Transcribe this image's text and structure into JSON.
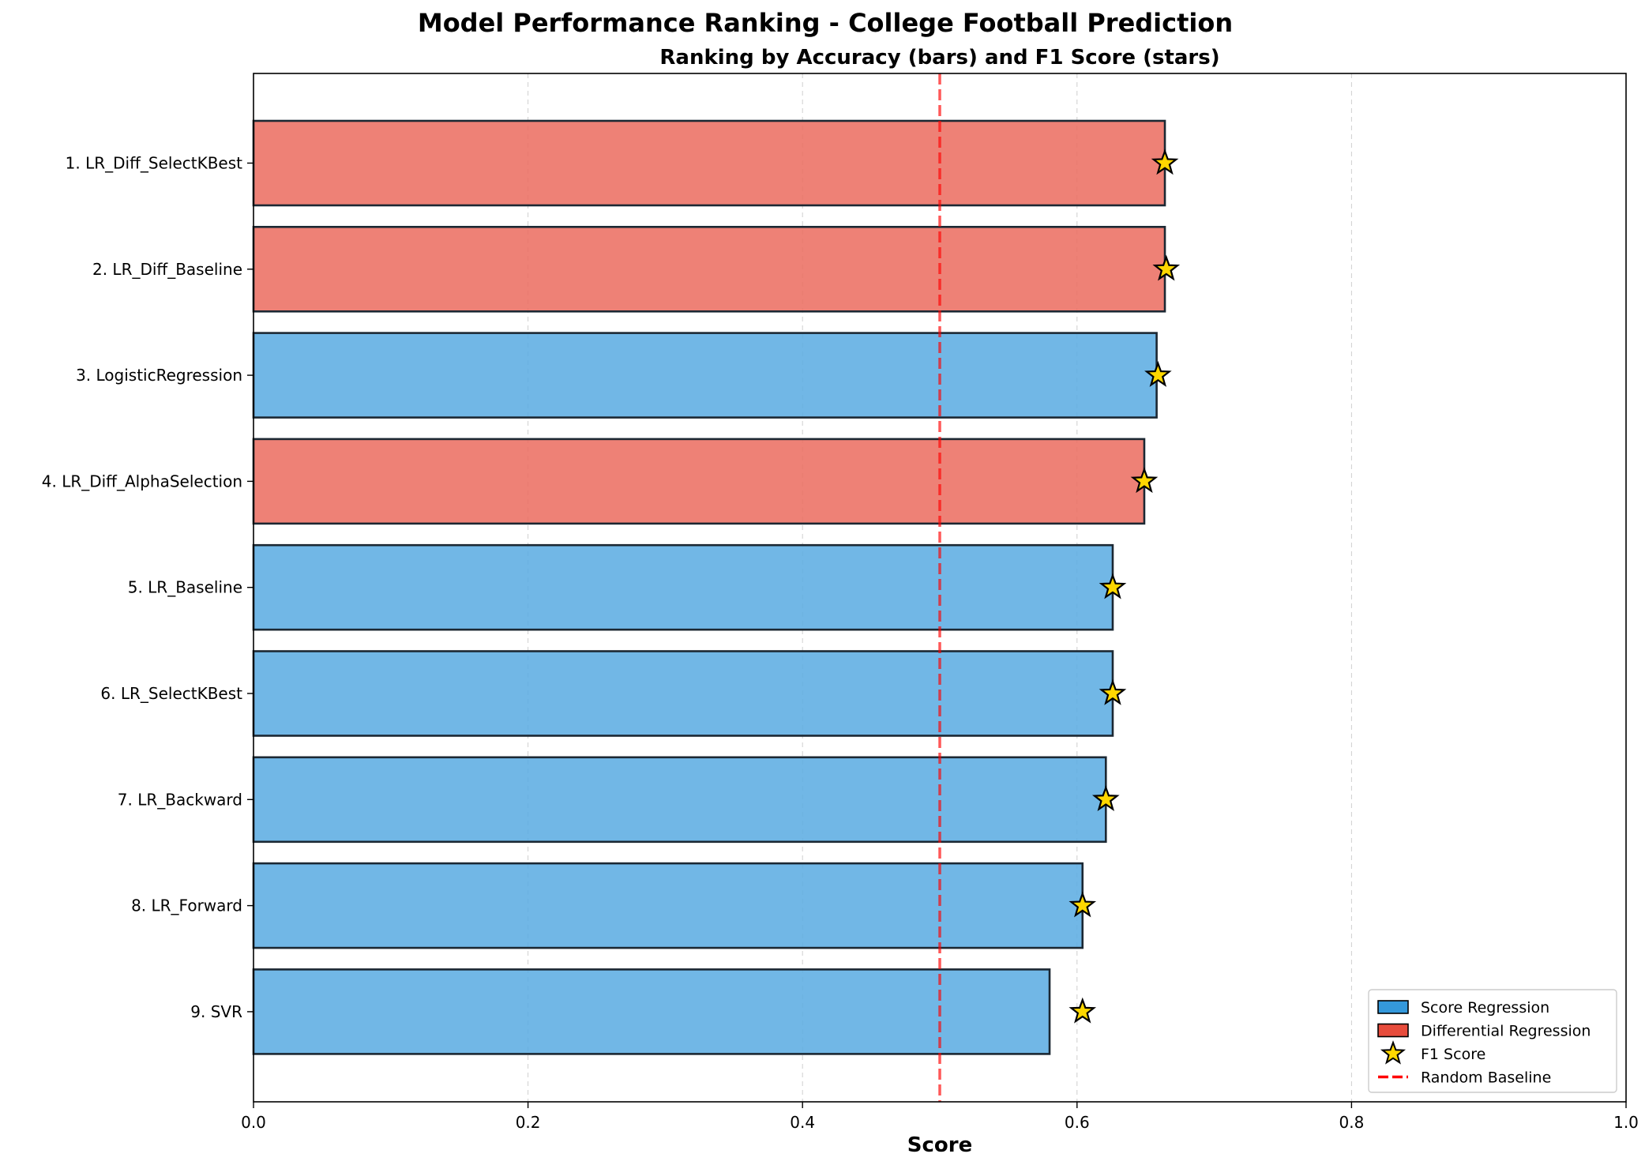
{
  "chart_data": {
    "type": "bar",
    "orientation": "horizontal",
    "title": "Model Performance Ranking - College Football Prediction",
    "subtitle": "Ranking by Accuracy (bars) and F1 Score (stars)",
    "xlabel": "Score",
    "ylabel": "",
    "xlim": [
      0.0,
      1.0
    ],
    "xticks": [
      "0.0",
      "0.2",
      "0.4",
      "0.6",
      "0.8",
      "1.0"
    ],
    "xtick_values": [
      0.0,
      0.2,
      0.4,
      0.6,
      0.8,
      1.0
    ],
    "grid": "vertical dashed",
    "categories": [
      "1. LR_Diff_SelectKBest",
      "2. LR_Diff_Baseline",
      "3. LogisticRegression",
      "4. LR_Diff_AlphaSelection",
      "5. LR_Baseline",
      "6. LR_SelectKBest",
      "7. LR_Backward",
      "8. LR_Forward",
      "9. SVR"
    ],
    "groups": [
      "Differential Regression",
      "Differential Regression",
      "Score Regression",
      "Differential Regression",
      "Score Regression",
      "Score Regression",
      "Score Regression",
      "Score Regression",
      "Score Regression"
    ],
    "series": [
      {
        "name": "Accuracy",
        "values": [
          0.664,
          0.664,
          0.658,
          0.649,
          0.626,
          0.626,
          0.621,
          0.604,
          0.58
        ]
      },
      {
        "name": "F1 Score",
        "values": [
          0.664,
          0.665,
          0.659,
          0.649,
          0.626,
          0.626,
          0.621,
          0.604,
          0.604
        ]
      }
    ],
    "reference_line": {
      "name": "Random Baseline",
      "value": 0.5
    },
    "legend": {
      "placement": "lower-right",
      "entries": [
        "Score Regression",
        "Differential Regression",
        "F1 Score",
        "Random Baseline"
      ]
    },
    "colors": {
      "score_regression": "#5dade2",
      "score_regression_legend": "#3498db",
      "differential_regression": "#ec7063",
      "differential_regression_legend": "#e74c3c",
      "bar_edge": "#1c2833",
      "star_fill": "#ffd700",
      "baseline": "#ff0000"
    }
  }
}
